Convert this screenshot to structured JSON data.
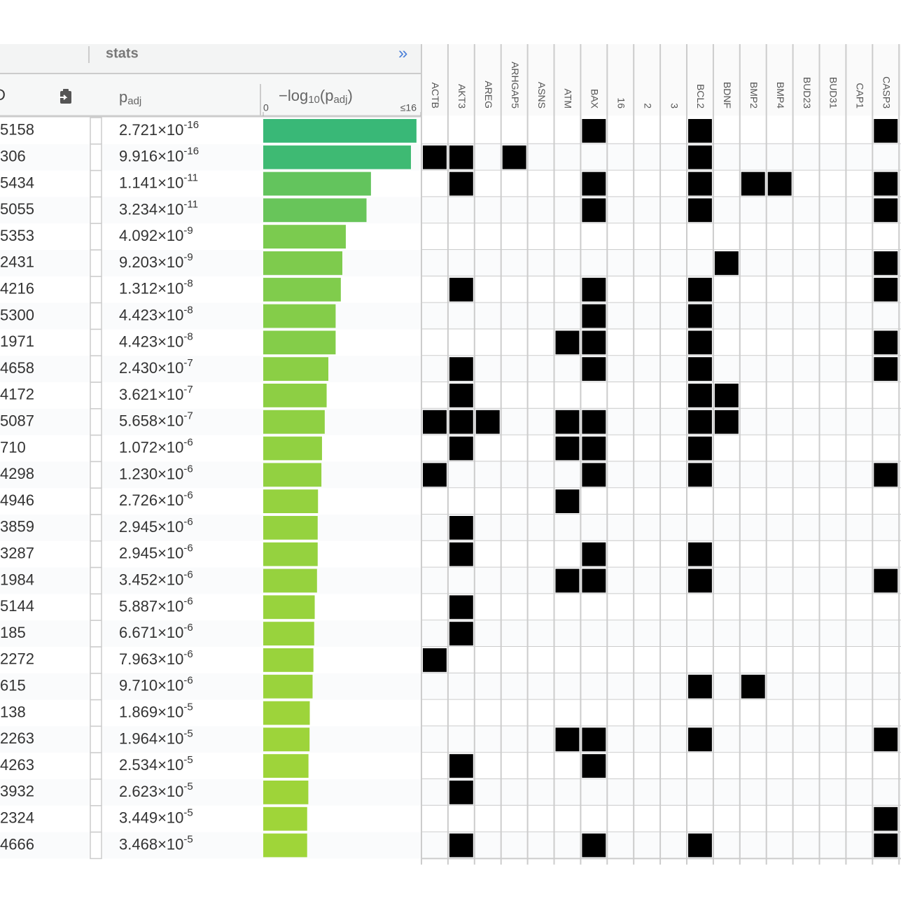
{
  "header": {
    "group": "stats",
    "expand": "»",
    "id_col": "D",
    "padj_col": {
      "main": "p",
      "sub": "adj"
    },
    "bar_col": {
      "parts": [
        "−log",
        "10",
        "(p",
        "adj",
        ")"
      ]
    },
    "bar_axis": {
      "lim": [
        0,
        16
      ],
      "ticks": [
        0,
        {
          "value": 16,
          "label": "≤16"
        }
      ],
      "colors": [
        "#c8e020",
        "#35b779"
      ]
    },
    "genes": [
      "ACTB",
      "AKT3",
      "AREG",
      "ARHGAP5",
      "ASNS",
      "ATM",
      "BAX",
      "16",
      "2",
      "3",
      "BCL2",
      "BDNF",
      "BMP2",
      "BMP4",
      "BUD23",
      "BUD31",
      "CAP1",
      "CASP3"
    ]
  },
  "times_ten": "×10",
  "rows": [
    {
      "id": "5158",
      "padj": {
        "value": 2.721e-16,
        "mantissa": "2.721",
        "exponent": "-16"
      },
      "cells": [
        0,
        0,
        0,
        0,
        0,
        0,
        1,
        0,
        0,
        0,
        1,
        0,
        0,
        0,
        0,
        0,
        0,
        1
      ]
    },
    {
      "id": "306",
      "padj": {
        "value": 9.916e-16,
        "mantissa": "9.916",
        "exponent": "-16"
      },
      "cells": [
        1,
        1,
        0,
        1,
        0,
        0,
        0,
        0,
        0,
        0,
        1,
        0,
        0,
        0,
        0,
        0,
        0,
        0
      ]
    },
    {
      "id": "5434",
      "padj": {
        "value": 1.141e-11,
        "mantissa": "1.141",
        "exponent": "-11"
      },
      "cells": [
        0,
        1,
        0,
        0,
        0,
        0,
        1,
        0,
        0,
        0,
        1,
        0,
        1,
        1,
        0,
        0,
        0,
        1
      ]
    },
    {
      "id": "5055",
      "padj": {
        "value": 3.234e-11,
        "mantissa": "3.234",
        "exponent": "-11"
      },
      "cells": [
        0,
        0,
        0,
        0,
        0,
        0,
        1,
        0,
        0,
        0,
        1,
        0,
        0,
        0,
        0,
        0,
        0,
        1
      ]
    },
    {
      "id": "5353",
      "padj": {
        "value": 4.092e-09,
        "mantissa": "4.092",
        "exponent": "-9"
      },
      "cells": [
        0,
        0,
        0,
        0,
        0,
        0,
        0,
        0,
        0,
        0,
        0,
        0,
        0,
        0,
        0,
        0,
        0,
        0
      ]
    },
    {
      "id": "2431",
      "padj": {
        "value": 9.203e-09,
        "mantissa": "9.203",
        "exponent": "-9"
      },
      "cells": [
        0,
        0,
        0,
        0,
        0,
        0,
        0,
        0,
        0,
        0,
        0,
        1,
        0,
        0,
        0,
        0,
        0,
        1
      ]
    },
    {
      "id": "4216",
      "padj": {
        "value": 1.312e-08,
        "mantissa": "1.312",
        "exponent": "-8"
      },
      "cells": [
        0,
        1,
        0,
        0,
        0,
        0,
        1,
        0,
        0,
        0,
        1,
        0,
        0,
        0,
        0,
        0,
        0,
        1
      ]
    },
    {
      "id": "5300",
      "padj": {
        "value": 4.423e-08,
        "mantissa": "4.423",
        "exponent": "-8"
      },
      "cells": [
        0,
        0,
        0,
        0,
        0,
        0,
        1,
        0,
        0,
        0,
        1,
        0,
        0,
        0,
        0,
        0,
        0,
        0
      ]
    },
    {
      "id": "1971",
      "padj": {
        "value": 4.423e-08,
        "mantissa": "4.423",
        "exponent": "-8"
      },
      "cells": [
        0,
        0,
        0,
        0,
        0,
        1,
        1,
        0,
        0,
        0,
        1,
        0,
        0,
        0,
        0,
        0,
        0,
        1
      ]
    },
    {
      "id": "4658",
      "padj": {
        "value": 2.43e-07,
        "mantissa": "2.430",
        "exponent": "-7"
      },
      "cells": [
        0,
        1,
        0,
        0,
        0,
        0,
        1,
        0,
        0,
        0,
        1,
        0,
        0,
        0,
        0,
        0,
        0,
        1
      ]
    },
    {
      "id": "4172",
      "padj": {
        "value": 3.621e-07,
        "mantissa": "3.621",
        "exponent": "-7"
      },
      "cells": [
        0,
        1,
        0,
        0,
        0,
        0,
        0,
        0,
        0,
        0,
        1,
        1,
        0,
        0,
        0,
        0,
        0,
        0
      ]
    },
    {
      "id": "5087",
      "padj": {
        "value": 5.658e-07,
        "mantissa": "5.658",
        "exponent": "-7"
      },
      "cells": [
        1,
        1,
        1,
        0,
        0,
        1,
        1,
        0,
        0,
        0,
        1,
        1,
        0,
        0,
        0,
        0,
        0,
        0
      ]
    },
    {
      "id": "710",
      "padj": {
        "value": 1.072e-06,
        "mantissa": "1.072",
        "exponent": "-6"
      },
      "cells": [
        0,
        1,
        0,
        0,
        0,
        1,
        1,
        0,
        0,
        0,
        1,
        0,
        0,
        0,
        0,
        0,
        0,
        0
      ]
    },
    {
      "id": "4298",
      "padj": {
        "value": 1.23e-06,
        "mantissa": "1.230",
        "exponent": "-6"
      },
      "cells": [
        1,
        0,
        0,
        0,
        0,
        0,
        1,
        0,
        0,
        0,
        1,
        0,
        0,
        0,
        0,
        0,
        0,
        1
      ]
    },
    {
      "id": "4946",
      "padj": {
        "value": 2.726e-06,
        "mantissa": "2.726",
        "exponent": "-6"
      },
      "cells": [
        0,
        0,
        0,
        0,
        0,
        1,
        0,
        0,
        0,
        0,
        0,
        0,
        0,
        0,
        0,
        0,
        0,
        0
      ]
    },
    {
      "id": "3859",
      "padj": {
        "value": 2.945e-06,
        "mantissa": "2.945",
        "exponent": "-6"
      },
      "cells": [
        0,
        1,
        0,
        0,
        0,
        0,
        0,
        0,
        0,
        0,
        0,
        0,
        0,
        0,
        0,
        0,
        0,
        0
      ]
    },
    {
      "id": "3287",
      "padj": {
        "value": 2.945e-06,
        "mantissa": "2.945",
        "exponent": "-6"
      },
      "cells": [
        0,
        1,
        0,
        0,
        0,
        0,
        1,
        0,
        0,
        0,
        1,
        0,
        0,
        0,
        0,
        0,
        0,
        0
      ]
    },
    {
      "id": "1984",
      "padj": {
        "value": 3.452e-06,
        "mantissa": "3.452",
        "exponent": "-6"
      },
      "cells": [
        0,
        0,
        0,
        0,
        0,
        1,
        1,
        0,
        0,
        0,
        1,
        0,
        0,
        0,
        0,
        0,
        0,
        1
      ]
    },
    {
      "id": "5144",
      "padj": {
        "value": 5.887e-06,
        "mantissa": "5.887",
        "exponent": "-6"
      },
      "cells": [
        0,
        1,
        0,
        0,
        0,
        0,
        0,
        0,
        0,
        0,
        0,
        0,
        0,
        0,
        0,
        0,
        0,
        0
      ]
    },
    {
      "id": "185",
      "padj": {
        "value": 6.671e-06,
        "mantissa": "6.671",
        "exponent": "-6"
      },
      "cells": [
        0,
        1,
        0,
        0,
        0,
        0,
        0,
        0,
        0,
        0,
        0,
        0,
        0,
        0,
        0,
        0,
        0,
        0
      ]
    },
    {
      "id": "2272",
      "padj": {
        "value": 7.963e-06,
        "mantissa": "7.963",
        "exponent": "-6"
      },
      "cells": [
        1,
        0,
        0,
        0,
        0,
        0,
        0,
        0,
        0,
        0,
        0,
        0,
        0,
        0,
        0,
        0,
        0,
        0
      ]
    },
    {
      "id": "615",
      "padj": {
        "value": 9.71e-06,
        "mantissa": "9.710",
        "exponent": "-6"
      },
      "cells": [
        0,
        0,
        0,
        0,
        0,
        0,
        0,
        0,
        0,
        0,
        1,
        0,
        1,
        0,
        0,
        0,
        0,
        0
      ]
    },
    {
      "id": "138",
      "padj": {
        "value": 1.869e-05,
        "mantissa": "1.869",
        "exponent": "-5"
      },
      "cells": [
        0,
        0,
        0,
        0,
        0,
        0,
        0,
        0,
        0,
        0,
        0,
        0,
        0,
        0,
        0,
        0,
        0,
        0
      ]
    },
    {
      "id": "2263",
      "padj": {
        "value": 1.964e-05,
        "mantissa": "1.964",
        "exponent": "-5"
      },
      "cells": [
        0,
        0,
        0,
        0,
        0,
        1,
        1,
        0,
        0,
        0,
        1,
        0,
        0,
        0,
        0,
        0,
        0,
        1
      ]
    },
    {
      "id": "4263",
      "padj": {
        "value": 2.534e-05,
        "mantissa": "2.534",
        "exponent": "-5"
      },
      "cells": [
        0,
        1,
        0,
        0,
        0,
        0,
        1,
        0,
        0,
        0,
        0,
        0,
        0,
        0,
        0,
        0,
        0,
        0
      ]
    },
    {
      "id": "3932",
      "padj": {
        "value": 2.623e-05,
        "mantissa": "2.623",
        "exponent": "-5"
      },
      "cells": [
        0,
        1,
        0,
        0,
        0,
        0,
        0,
        0,
        0,
        0,
        0,
        0,
        0,
        0,
        0,
        0,
        0,
        0
      ]
    },
    {
      "id": "2324",
      "padj": {
        "value": 3.449e-05,
        "mantissa": "3.449",
        "exponent": "-5"
      },
      "cells": [
        0,
        0,
        0,
        0,
        0,
        0,
        0,
        0,
        0,
        0,
        0,
        0,
        0,
        0,
        0,
        0,
        0,
        1
      ]
    },
    {
      "id": "4666",
      "padj": {
        "value": 3.468e-05,
        "mantissa": "3.468",
        "exponent": "-5"
      },
      "cells": [
        0,
        1,
        0,
        0,
        0,
        0,
        1,
        0,
        0,
        0,
        1,
        0,
        0,
        0,
        0,
        0,
        0,
        1
      ]
    }
  ]
}
